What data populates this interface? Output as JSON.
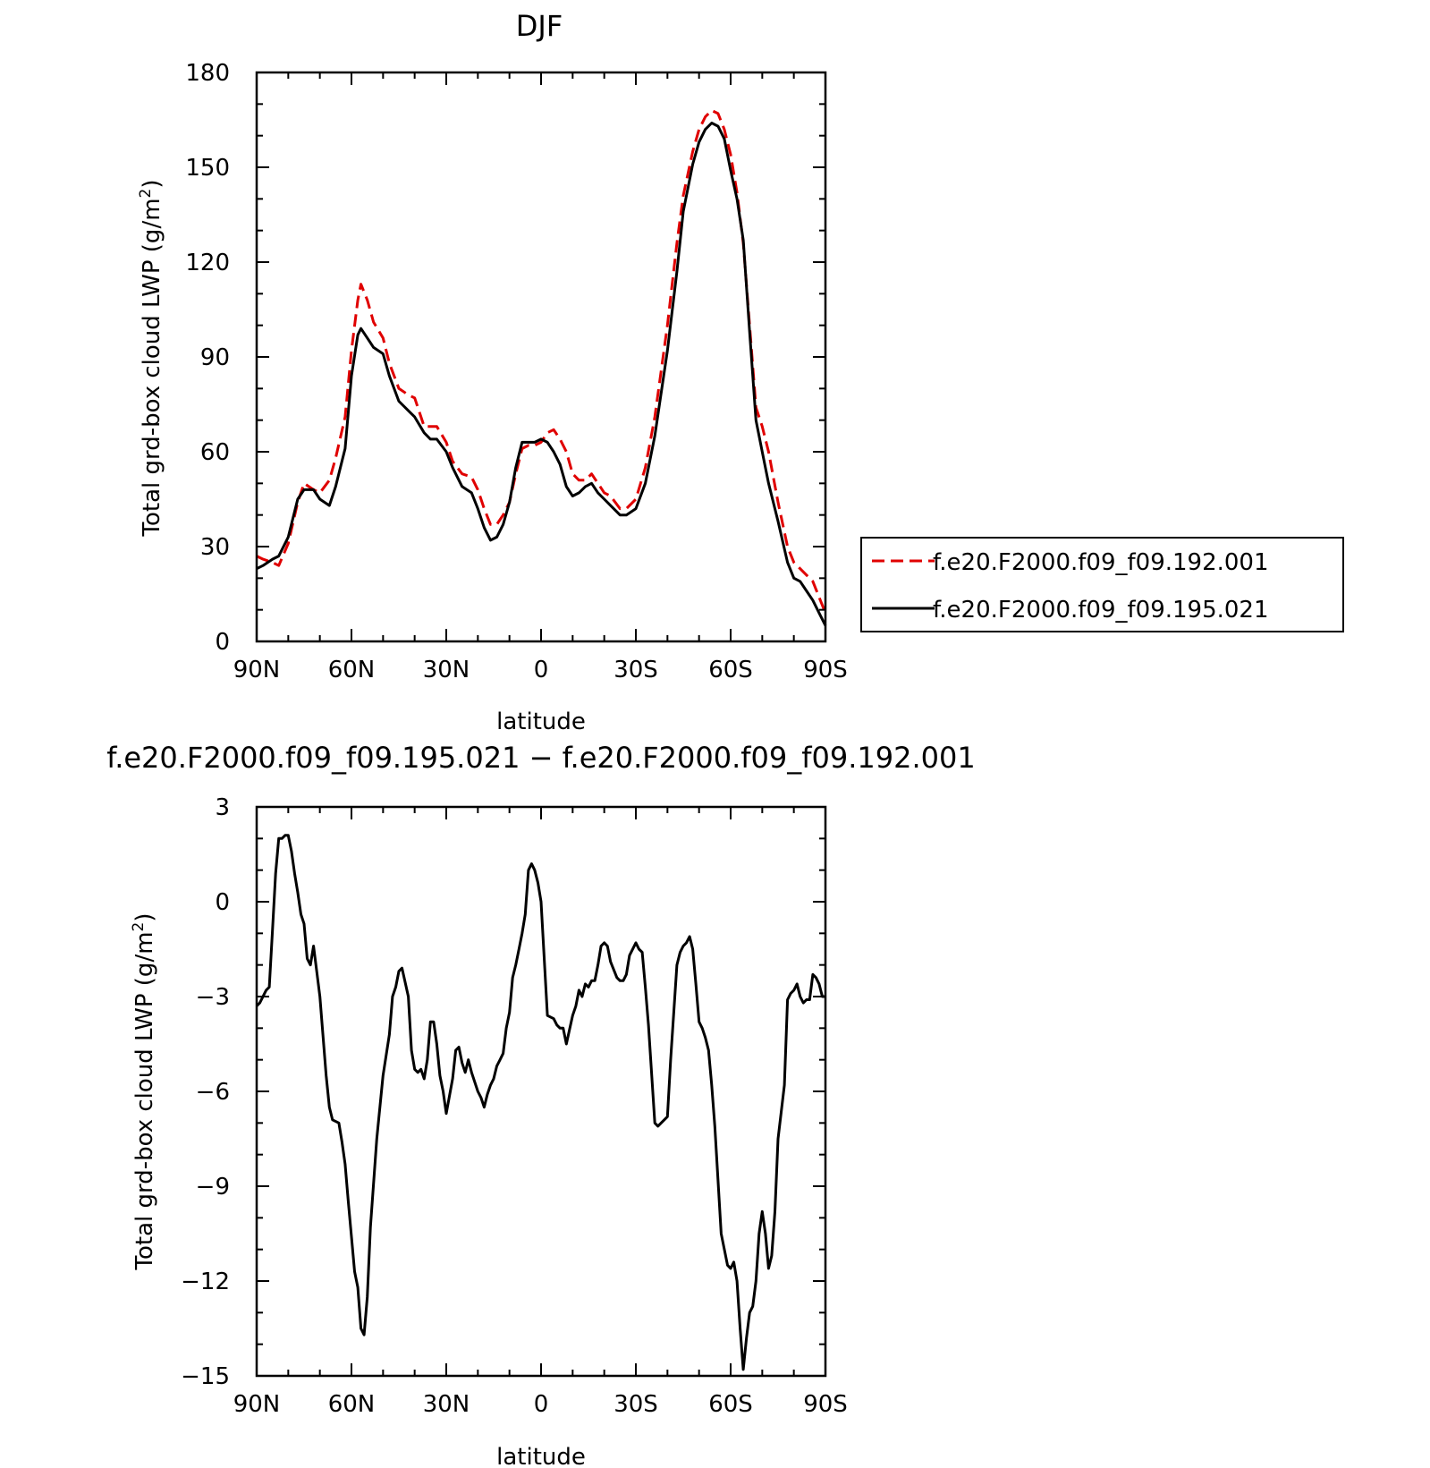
{
  "chart_data": [
    {
      "type": "line",
      "title": "DJF",
      "xlabel": "latitude",
      "ylabel": "Total grd-box cloud LWP (g/m²)",
      "ylabel_main": "Total grd-box cloud LWP (g/m",
      "ylabel_sup": "2",
      "ylabel_close": ")",
      "xlim": [
        90,
        -90
      ],
      "ylim": [
        0,
        180
      ],
      "x_ticks": [
        90,
        60,
        30,
        0,
        -30,
        -60,
        -90
      ],
      "x_tick_labels": [
        "90N",
        "60N",
        "30N",
        "0",
        "30S",
        "60S",
        "90S"
      ],
      "y_ticks": [
        0,
        30,
        60,
        90,
        120,
        150,
        180
      ],
      "y_tick_labels": [
        "0",
        "30",
        "60",
        "90",
        "120",
        "150",
        "180"
      ],
      "legend": "right",
      "series": [
        {
          "name": "f.e20.F2000.f09_f09.192.001",
          "color": "#e00000",
          "dash": "dashed",
          "x": [
            90,
            88,
            85,
            83,
            80,
            77,
            75,
            72,
            70,
            67,
            65,
            62,
            60,
            58,
            57,
            55,
            53,
            50,
            48,
            45,
            42,
            40,
            37,
            35,
            33,
            30,
            28,
            25,
            22,
            20,
            18,
            16,
            14,
            12,
            10,
            8,
            6,
            4,
            2,
            0,
            -2,
            -4,
            -6,
            -8,
            -10,
            -12,
            -14,
            -16,
            -18,
            -20,
            -22,
            -25,
            -27,
            -30,
            -33,
            -36,
            -40,
            -43,
            -45,
            -48,
            -50,
            -52,
            -54,
            -56,
            -58,
            -60,
            -62,
            -64,
            -66,
            -68,
            -70,
            -72,
            -75,
            -78,
            -80,
            -82,
            -84,
            -86,
            -88,
            -90
          ],
          "values": [
            27,
            26,
            25,
            24,
            31,
            44,
            50,
            48,
            47,
            51,
            58,
            71,
            92,
            108,
            113,
            108,
            101,
            96,
            88,
            80,
            78,
            77,
            68,
            68,
            68,
            63,
            57,
            53,
            52,
            48,
            42,
            37,
            37,
            40,
            44,
            53,
            61,
            62,
            62,
            63,
            66,
            67,
            64,
            60,
            53,
            51,
            51,
            53,
            50,
            47,
            46,
            42,
            42,
            45,
            55,
            71,
            100,
            126,
            141,
            155,
            162,
            166,
            168,
            167,
            162,
            154,
            142,
            126,
            100,
            74,
            68,
            60,
            44,
            30,
            25,
            23,
            21,
            19,
            14,
            9
          ]
        },
        {
          "name": "f.e20.F2000.f09_f09.195.021",
          "color": "#000000",
          "dash": "solid",
          "x": [
            90,
            88,
            85,
            83,
            80,
            77,
            75,
            72,
            70,
            67,
            65,
            62,
            60,
            58,
            57,
            55,
            53,
            50,
            48,
            45,
            42,
            40,
            37,
            35,
            33,
            30,
            28,
            25,
            22,
            20,
            18,
            16,
            14,
            12,
            10,
            8,
            6,
            4,
            2,
            0,
            -2,
            -4,
            -6,
            -8,
            -10,
            -12,
            -14,
            -16,
            -18,
            -20,
            -22,
            -25,
            -27,
            -30,
            -33,
            -36,
            -40,
            -43,
            -45,
            -48,
            -50,
            -52,
            -54,
            -56,
            -58,
            -60,
            -62,
            -64,
            -66,
            -68,
            -70,
            -72,
            -75,
            -78,
            -80,
            -82,
            -84,
            -86,
            -88,
            -90
          ],
          "values": [
            23,
            24,
            26,
            27,
            33,
            45,
            48,
            48,
            45,
            43,
            49,
            61,
            84,
            97,
            99,
            96,
            93,
            91,
            84,
            76,
            73,
            71,
            66,
            64,
            64,
            60,
            55,
            49,
            47,
            42,
            36,
            32,
            33,
            37,
            44,
            55,
            63,
            63,
            63,
            64,
            63,
            60,
            56,
            49,
            46,
            47,
            49,
            50,
            47,
            45,
            43,
            40,
            40,
            42,
            50,
            65,
            92,
            117,
            136,
            151,
            158,
            162,
            164,
            163,
            159,
            149,
            140,
            127,
            98,
            70,
            60,
            50,
            38,
            25,
            20,
            19,
            16,
            13,
            9,
            5
          ]
        }
      ]
    },
    {
      "type": "line",
      "title": "f.e20.F2000.f09_f09.195.021 − f.e20.F2000.f09_f09.192.001",
      "xlabel": "latitude",
      "ylabel": "Total grd-box cloud LWP (g/m²)",
      "ylabel_main": "Total grd-box cloud LWP (g/m",
      "ylabel_sup": "2",
      "ylabel_close": ")",
      "xlim": [
        90,
        -90
      ],
      "ylim": [
        -15,
        3
      ],
      "x_ticks": [
        90,
        60,
        30,
        0,
        -30,
        -60,
        -90
      ],
      "x_tick_labels": [
        "90N",
        "60N",
        "30N",
        "0",
        "30S",
        "60S",
        "90S"
      ],
      "y_ticks": [
        -15,
        -12,
        -9,
        -6,
        -3,
        0,
        3
      ],
      "y_tick_labels": [
        "−15",
        "−12",
        "−9",
        "−6",
        "−3",
        "0",
        "3"
      ],
      "series": [
        {
          "color": "#000000",
          "dash": "solid",
          "x": [
            90,
            89,
            87,
            86,
            85,
            84,
            83,
            82,
            81,
            80,
            79,
            78,
            77,
            76,
            75,
            74,
            73,
            72,
            70,
            68,
            67,
            66,
            64,
            63,
            62,
            61,
            60,
            59,
            58,
            57,
            56,
            55,
            54,
            52,
            50,
            48,
            47,
            46,
            45,
            44,
            42,
            41,
            40,
            39,
            38,
            37,
            36,
            35,
            34,
            33,
            32,
            31,
            30,
            28,
            27,
            26,
            25,
            24,
            23,
            22,
            20,
            19,
            18,
            17,
            16,
            15,
            14,
            13,
            12,
            11,
            10,
            9,
            8,
            7,
            6,
            5,
            4,
            3,
            2,
            1,
            0,
            -2,
            -4,
            -5,
            -6,
            -7,
            -8,
            -10,
            -11,
            -12,
            -13,
            -14,
            -15,
            -16,
            -17,
            -18,
            -19,
            -20,
            -21,
            -22,
            -24,
            -25,
            -26,
            -27,
            -28,
            -30,
            -31,
            -32,
            -33,
            -34,
            -36,
            -37,
            -38,
            -40,
            -41,
            -42,
            -43,
            -44,
            -45,
            -46,
            -47,
            -48,
            -49,
            -50,
            -51,
            -52,
            -53,
            -54,
            -55,
            -57,
            -59,
            -60,
            -61,
            -62,
            -63,
            -64,
            -65,
            -66,
            -67,
            -68,
            -69,
            -70,
            -71,
            -72,
            -73,
            -74,
            -75,
            -77,
            -78,
            -79,
            -80,
            -81,
            -82,
            -83,
            -84,
            -85,
            -86,
            -87,
            -88,
            -89,
            -90
          ],
          "values": [
            -3.3,
            -3.2,
            -2.8,
            -2.7,
            -0.9,
            0.9,
            2.0,
            2.0,
            2.1,
            2.1,
            1.6,
            0.9,
            0.3,
            -0.4,
            -0.7,
            -1.8,
            -2.0,
            -1.4,
            -3.0,
            -5.5,
            -6.5,
            -6.9,
            -7.0,
            -7.6,
            -8.3,
            -9.5,
            -10.6,
            -11.7,
            -12.2,
            -13.5,
            -13.7,
            -12.5,
            -10.3,
            -7.5,
            -5.5,
            -4.2,
            -3.0,
            -2.7,
            -2.2,
            -2.1,
            -3.0,
            -4.7,
            -5.3,
            -5.4,
            -5.3,
            -5.6,
            -5.0,
            -3.8,
            -3.8,
            -4.5,
            -5.5,
            -6.0,
            -6.7,
            -5.6,
            -4.7,
            -4.6,
            -5.1,
            -5.4,
            -5.0,
            -5.4,
            -6.0,
            -6.2,
            -6.5,
            -6.1,
            -5.8,
            -5.6,
            -5.2,
            -5.0,
            -4.8,
            -4.0,
            -3.5,
            -2.4,
            -2.0,
            -1.5,
            -1.0,
            -0.4,
            1.0,
            1.2,
            1.0,
            0.6,
            0.0,
            -3.6,
            -3.7,
            -3.9,
            -4.0,
            -4.0,
            -4.5,
            -3.6,
            -3.3,
            -2.8,
            -3.0,
            -2.6,
            -2.7,
            -2.5,
            -2.5,
            -2.0,
            -1.4,
            -1.3,
            -1.4,
            -1.9,
            -2.4,
            -2.5,
            -2.5,
            -2.3,
            -1.7,
            -1.3,
            -1.5,
            -1.6,
            -2.7,
            -3.9,
            -7.0,
            -7.1,
            -7.0,
            -6.8,
            -5.0,
            -3.5,
            -2.0,
            -1.6,
            -1.4,
            -1.3,
            -1.1,
            -1.5,
            -2.6,
            -3.8,
            -4.0,
            -4.3,
            -4.7,
            -5.8,
            -7.1,
            -10.5,
            -11.5,
            -11.6,
            -11.4,
            -12.0,
            -13.5,
            -14.8,
            -13.8,
            -13.0,
            -12.8,
            -12.0,
            -10.5,
            -9.8,
            -10.5,
            -11.6,
            -11.2,
            -9.8,
            -7.5,
            -5.8,
            -3.1,
            -2.9,
            -2.8,
            -2.6,
            -3.0,
            -3.2,
            -3.1,
            -3.1,
            -2.3,
            -2.4,
            -2.6,
            -3.0,
            -3.0
          ]
        }
      ]
    }
  ]
}
